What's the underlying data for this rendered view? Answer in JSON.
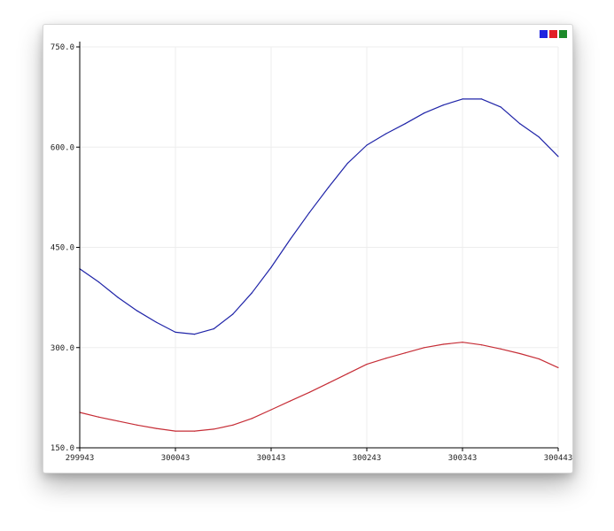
{
  "chart_data": {
    "type": "line",
    "title": "",
    "xlabel": "",
    "ylabel": "",
    "x_ticks": [
      "299943",
      "300043",
      "300143",
      "300243",
      "300343",
      "300443"
    ],
    "y_ticks": [
      "750.0",
      "600.0",
      "450.0",
      "300.0",
      "150.0"
    ],
    "xlim": [
      299943,
      300443
    ],
    "ylim": [
      150,
      750
    ],
    "grid": true,
    "legend_position": "top-right",
    "series": [
      {
        "color": "#1f24a8",
        "x": [
          299943,
          299963,
          299983,
          300003,
          300023,
          300043,
          300063,
          300083,
          300103,
          300123,
          300143,
          300163,
          300183,
          300203,
          300223,
          300243,
          300263,
          300283,
          300303,
          300323,
          300343,
          300363,
          300383,
          300403,
          300423,
          300443
        ],
        "values": [
          418,
          398,
          375,
          355,
          338,
          323,
          320,
          328,
          350,
          382,
          420,
          462,
          502,
          540,
          576,
          603,
          620,
          635,
          651,
          663,
          672,
          672,
          660,
          635,
          615,
          586
        ]
      },
      {
        "color": "#c62d36",
        "x": [
          299943,
          299963,
          299983,
          300003,
          300023,
          300043,
          300063,
          300083,
          300103,
          300123,
          300143,
          300163,
          300183,
          300203,
          300223,
          300243,
          300263,
          300283,
          300303,
          300323,
          300343,
          300363,
          300383,
          300403,
          300423,
          300443
        ],
        "values": [
          203,
          196,
          190,
          184,
          179,
          175,
          175,
          178,
          184,
          194,
          207,
          220,
          233,
          247,
          261,
          275,
          284,
          292,
          300,
          305,
          308,
          304,
          298,
          291,
          283,
          270
        ]
      }
    ],
    "legend_colors": [
      "#1f24e0",
      "#e21f27",
      "#1c8a2a"
    ]
  }
}
